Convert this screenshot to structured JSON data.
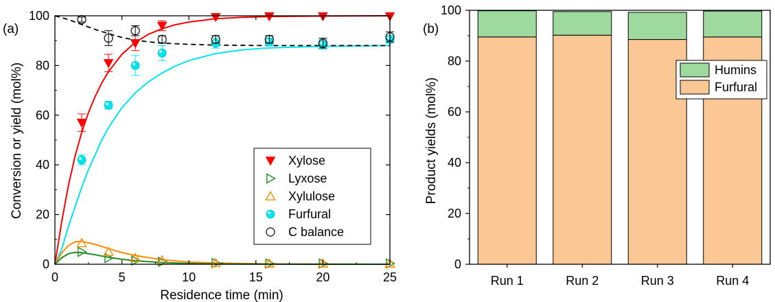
{
  "chart_data": [
    {
      "panel_label": "(a)",
      "type": "scatter",
      "xlabel": "Residence time (min)",
      "ylabel": "Conversion or yield (mol%)",
      "xlim": [
        0,
        25
      ],
      "ylim": [
        0,
        100
      ],
      "xticks": [
        0,
        5,
        10,
        15,
        20,
        25
      ],
      "yticks": [
        0,
        20,
        40,
        60,
        80,
        100
      ],
      "legend_position": "bottom-right",
      "colors": {
        "Xylose": "#ff0000",
        "Lyxose": "#228b22",
        "Xylulose": "#ff8c00",
        "Furfural": "#00e5ee",
        "C balance": "#000000"
      },
      "series": [
        {
          "name": "Xylose",
          "marker": "filled-down-triangle",
          "x": [
            2,
            4,
            6,
            8,
            12,
            16,
            20,
            25
          ],
          "y": [
            57,
            81,
            89,
            96,
            99.5,
            99.8,
            99.8,
            99.8
          ],
          "err": [
            3.5,
            3.5,
            3,
            2,
            0,
            0,
            0,
            0
          ]
        },
        {
          "name": "Lyxose",
          "marker": "open-right-triangle",
          "x": [
            2,
            4,
            6,
            8,
            12,
            16,
            20,
            25
          ],
          "y": [
            5,
            2.5,
            1.5,
            1,
            0.5,
            0.3,
            0.3,
            0.3
          ]
        },
        {
          "name": "Xylulose",
          "marker": "open-up-triangle",
          "x": [
            2,
            4,
            6,
            8,
            12,
            16,
            20,
            25
          ],
          "y": [
            8.5,
            5,
            2.5,
            1.5,
            0.5,
            0.3,
            0.3,
            0.3
          ]
        },
        {
          "name": "Furfural",
          "marker": "filled-circle",
          "x": [
            2,
            4,
            6,
            8,
            12,
            16,
            20,
            25
          ],
          "y": [
            42,
            64,
            80,
            85,
            89,
            89.5,
            88.5,
            90.5
          ],
          "err": [
            2,
            1.5,
            4,
            3,
            2,
            1.5,
            2,
            1.5
          ]
        },
        {
          "name": "C balance",
          "marker": "open-circle",
          "x": [
            2,
            4,
            6,
            8,
            12,
            16,
            20,
            25
          ],
          "y": [
            98.5,
            91,
            94,
            90.5,
            90.5,
            90.5,
            89,
            91.5
          ],
          "err": [
            1,
            3,
            2,
            1.5,
            1.5,
            1.5,
            2,
            2
          ]
        }
      ],
      "fits": [
        {
          "series": "Xylose",
          "style": "solid",
          "x": [
            0,
            0.5,
            1,
            1.5,
            2,
            2.5,
            3,
            3.5,
            4,
            5,
            6,
            7,
            8,
            9,
            10,
            12,
            14,
            16,
            20,
            25
          ],
          "y": [
            0,
            17,
            31.5,
            43.4,
            53,
            61,
            67.5,
            73,
            77.5,
            84.5,
            89.3,
            92.6,
            94.8,
            96.4,
            97.5,
            98.8,
            99.4,
            99.7,
            99.9,
            100
          ]
        },
        {
          "series": "Furfural",
          "style": "solid",
          "x": [
            0,
            0.5,
            1,
            1.5,
            2,
            2.5,
            3,
            3.5,
            4,
            5,
            6,
            7,
            8,
            9,
            10,
            12,
            14,
            16,
            20,
            25
          ],
          "y": [
            0,
            6,
            15,
            23,
            31,
            38,
            44,
            50,
            55,
            63,
            69,
            73.5,
            77,
            79.8,
            82,
            84.8,
            86.3,
            87.1,
            87.7,
            88
          ]
        },
        {
          "series": "Xylulose",
          "style": "solid",
          "x": [
            0,
            0.5,
            1,
            1.5,
            2,
            3,
            4,
            5,
            6,
            8,
            10,
            12,
            16,
            20,
            25
          ],
          "y": [
            0,
            4.5,
            7.5,
            9,
            9.2,
            8,
            6.3,
            4.7,
            3.5,
            1.8,
            0.9,
            0.5,
            0.1,
            0.05,
            0
          ]
        },
        {
          "series": "Lyxose",
          "style": "solid",
          "x": [
            0,
            0.5,
            1,
            1.5,
            2,
            3,
            4,
            5,
            6,
            8,
            10,
            12,
            16,
            20,
            25
          ],
          "y": [
            0,
            2.6,
            4.2,
            4.8,
            4.7,
            3.8,
            2.8,
            2,
            1.4,
            0.7,
            0.3,
            0.15,
            0.05,
            0,
            0
          ]
        },
        {
          "series": "C balance",
          "style": "dashed",
          "x": [
            0,
            1,
            2,
            3,
            4,
            5,
            6,
            7,
            8,
            10,
            12,
            16,
            20,
            25
          ],
          "y": [
            100,
            98.5,
            96.5,
            94.5,
            92.8,
            91.3,
            90.2,
            89.5,
            89,
            88.5,
            88.2,
            88,
            88,
            88
          ]
        }
      ]
    },
    {
      "panel_label": "(b)",
      "type": "bar",
      "stacked": true,
      "ylabel": "Product yields (mol%)",
      "ylim": [
        0,
        100
      ],
      "yticks": [
        0,
        20,
        40,
        60,
        80,
        100
      ],
      "categories": [
        "Run 1",
        "Run 2",
        "Run 3",
        "Run 4"
      ],
      "legend_position": "top-right",
      "series": [
        {
          "name": "Furfural",
          "color": "#fbc794",
          "values": [
            89.5,
            90.2,
            88.5,
            89.5
          ]
        },
        {
          "name": "Humins",
          "color": "#9ed99e",
          "values": [
            10.3,
            9.3,
            10.7,
            10.2
          ]
        }
      ]
    }
  ]
}
